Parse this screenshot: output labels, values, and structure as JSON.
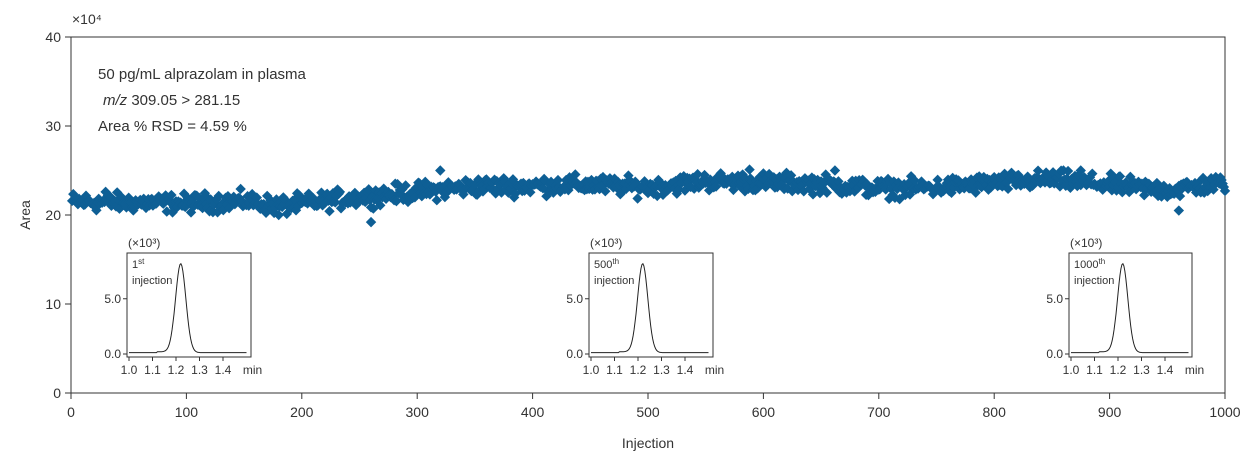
{
  "chart_data": {
    "type": "scatter",
    "title": "",
    "xlabel": "Injection",
    "ylabel": "Area",
    "y_multiplier_label": "×10⁴",
    "xlim": [
      0,
      1000
    ],
    "ylim": [
      0,
      40
    ],
    "xticks": [
      0,
      100,
      200,
      300,
      400,
      500,
      600,
      700,
      800,
      900,
      1000
    ],
    "yticks": [
      0,
      10,
      20,
      30,
      40
    ],
    "marker": "diamond",
    "color": "#0e5f95",
    "annotations": [
      "50 pg/mL alprazolam in plasma",
      "m/z 309.05 > 281.15",
      "Area % RSD = 4.59 %"
    ],
    "trend": [
      {
        "x": 0,
        "y": 21.5
      },
      {
        "x": 50,
        "y": 21.4
      },
      {
        "x": 100,
        "y": 21.3
      },
      {
        "x": 150,
        "y": 21.6
      },
      {
        "x": 180,
        "y": 21.0
      },
      {
        "x": 250,
        "y": 22.0
      },
      {
        "x": 300,
        "y": 22.6
      },
      {
        "x": 350,
        "y": 23.2
      },
      {
        "x": 400,
        "y": 23.3
      },
      {
        "x": 450,
        "y": 23.4
      },
      {
        "x": 500,
        "y": 23.1
      },
      {
        "x": 550,
        "y": 23.8
      },
      {
        "x": 600,
        "y": 23.7
      },
      {
        "x": 650,
        "y": 23.5
      },
      {
        "x": 700,
        "y": 23.0
      },
      {
        "x": 750,
        "y": 23.1
      },
      {
        "x": 800,
        "y": 23.6
      },
      {
        "x": 850,
        "y": 24.0
      },
      {
        "x": 900,
        "y": 23.4
      },
      {
        "x": 950,
        "y": 22.8
      },
      {
        "x": 1000,
        "y": 23.6
      }
    ],
    "outliers": [
      {
        "x": 260,
        "y": 19.2
      },
      {
        "x": 320,
        "y": 25.0
      },
      {
        "x": 588,
        "y": 25.1
      },
      {
        "x": 662,
        "y": 25.0
      },
      {
        "x": 875,
        "y": 25.0
      },
      {
        "x": 960,
        "y": 20.5
      },
      {
        "x": 30,
        "y": 22.6
      },
      {
        "x": 180,
        "y": 20.0
      }
    ],
    "insets": [
      {
        "label_main": "1",
        "label_sup": "st",
        "label_line2": "injection",
        "multiplier": "(×10³)",
        "ytick_mid": "5.0",
        "ytick_low": "0.0",
        "xticks": [
          "1.0",
          "1.1",
          "1.2",
          "1.3",
          "1.4"
        ],
        "xunit": "min",
        "peak_rt": 1.22
      },
      {
        "label_main": "500",
        "label_sup": "th",
        "label_line2": "injection",
        "multiplier": "(×10³)",
        "ytick_mid": "5.0",
        "ytick_low": "0.0",
        "xticks": [
          "1.0",
          "1.1",
          "1.2",
          "1.3",
          "1.4"
        ],
        "xunit": "min",
        "peak_rt": 1.22
      },
      {
        "label_main": "1000",
        "label_sup": "th",
        "label_line2": "injection",
        "multiplier": "(×10³)",
        "ytick_mid": "5.0",
        "ytick_low": "0.0",
        "xticks": [
          "1.0",
          "1.1",
          "1.2",
          "1.3",
          "1.4"
        ],
        "xunit": "min",
        "peak_rt": 1.22
      }
    ]
  }
}
